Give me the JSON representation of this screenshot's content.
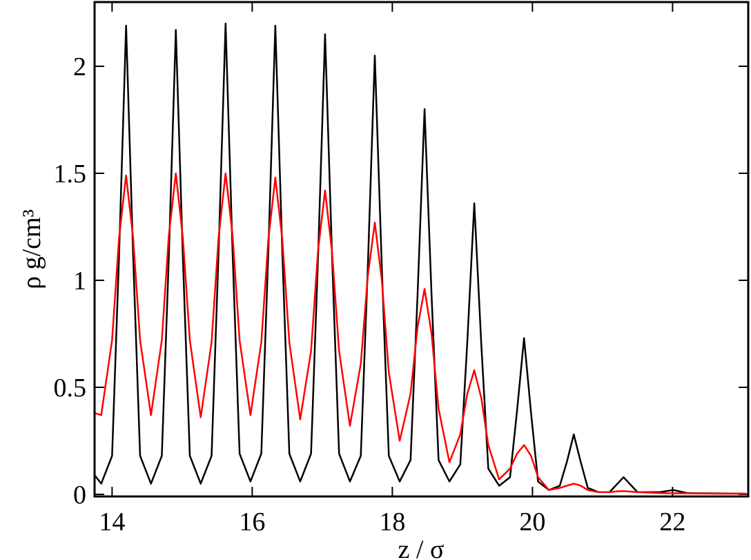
{
  "chart_data": {
    "type": "line",
    "xlabel": "z / σ",
    "ylabel": "ρ g/cm³",
    "x": [
      13.75,
      13.845,
      14.0,
      14.1,
      14.2,
      14.3,
      14.4,
      14.555,
      14.71,
      14.81,
      14.91,
      15.01,
      15.11,
      15.265,
      15.42,
      15.52,
      15.62,
      15.72,
      15.82,
      15.975,
      16.13,
      16.23,
      16.33,
      16.43,
      16.53,
      16.685,
      16.84,
      16.94,
      17.04,
      17.14,
      17.24,
      17.395,
      17.55,
      17.65,
      17.75,
      17.85,
      17.95,
      18.105,
      18.26,
      18.36,
      18.46,
      18.56,
      18.66,
      18.815,
      18.97,
      19.07,
      19.17,
      19.27,
      19.37,
      19.525,
      19.68,
      19.78,
      19.88,
      19.98,
      20.08,
      20.235,
      20.39,
      20.49,
      20.59,
      20.69,
      20.79,
      20.945,
      21.1,
      21.2,
      21.3,
      21.4,
      21.5,
      21.655,
      21.81,
      21.91,
      22.01,
      22.11,
      22.21,
      22.365,
      22.7,
      23.05
    ],
    "series": [
      {
        "color": "#000000",
        "values": [
          0.09,
          0.05,
          0.18,
          1.12,
          2.19,
          1.12,
          0.18,
          0.05,
          0.18,
          1.11,
          2.17,
          1.11,
          0.18,
          0.05,
          0.18,
          1.13,
          2.2,
          1.13,
          0.19,
          0.06,
          0.19,
          1.13,
          2.19,
          1.13,
          0.19,
          0.06,
          0.19,
          1.11,
          2.15,
          1.11,
          0.19,
          0.06,
          0.18,
          1.06,
          2.05,
          1.06,
          0.18,
          0.06,
          0.16,
          0.93,
          1.8,
          0.93,
          0.16,
          0.06,
          0.14,
          0.71,
          1.36,
          0.7,
          0.12,
          0.04,
          0.08,
          0.39,
          0.73,
          0.38,
          0.06,
          0.02,
          0.04,
          0.15,
          0.28,
          0.15,
          0.03,
          0.01,
          0.01,
          0.045,
          0.08,
          0.045,
          0.01,
          0.01,
          0.01,
          0.015,
          0.02,
          0.013,
          0.006,
          0.005,
          0.004,
          0.003
        ]
      },
      {
        "color": "#ff0000",
        "values": [
          0.38,
          0.37,
          0.72,
          1.2,
          1.49,
          1.2,
          0.72,
          0.37,
          0.72,
          1.21,
          1.5,
          1.2,
          0.72,
          0.36,
          0.71,
          1.2,
          1.5,
          1.21,
          0.72,
          0.37,
          0.71,
          1.19,
          1.48,
          1.19,
          0.71,
          0.35,
          0.67,
          1.14,
          1.42,
          1.13,
          0.67,
          0.32,
          0.61,
          1.02,
          1.27,
          1.0,
          0.57,
          0.25,
          0.47,
          0.78,
          0.96,
          0.75,
          0.4,
          0.15,
          0.28,
          0.47,
          0.58,
          0.45,
          0.23,
          0.07,
          0.12,
          0.19,
          0.23,
          0.18,
          0.08,
          0.02,
          0.03,
          0.04,
          0.05,
          0.04,
          0.02,
          0.01,
          0.01,
          0.014,
          0.015,
          0.013,
          0.01,
          0.008,
          0.006,
          0.005,
          0.005,
          0.005,
          0.005,
          0.004,
          0.003,
          0.003
        ]
      }
    ],
    "xlim": [
      13.75,
      23.08
    ],
    "ylim": [
      -0.01,
      2.3
    ],
    "xticks": [
      14,
      16,
      18,
      20,
      22
    ],
    "yticks": [
      0,
      0.5,
      1,
      1.5,
      2
    ]
  }
}
